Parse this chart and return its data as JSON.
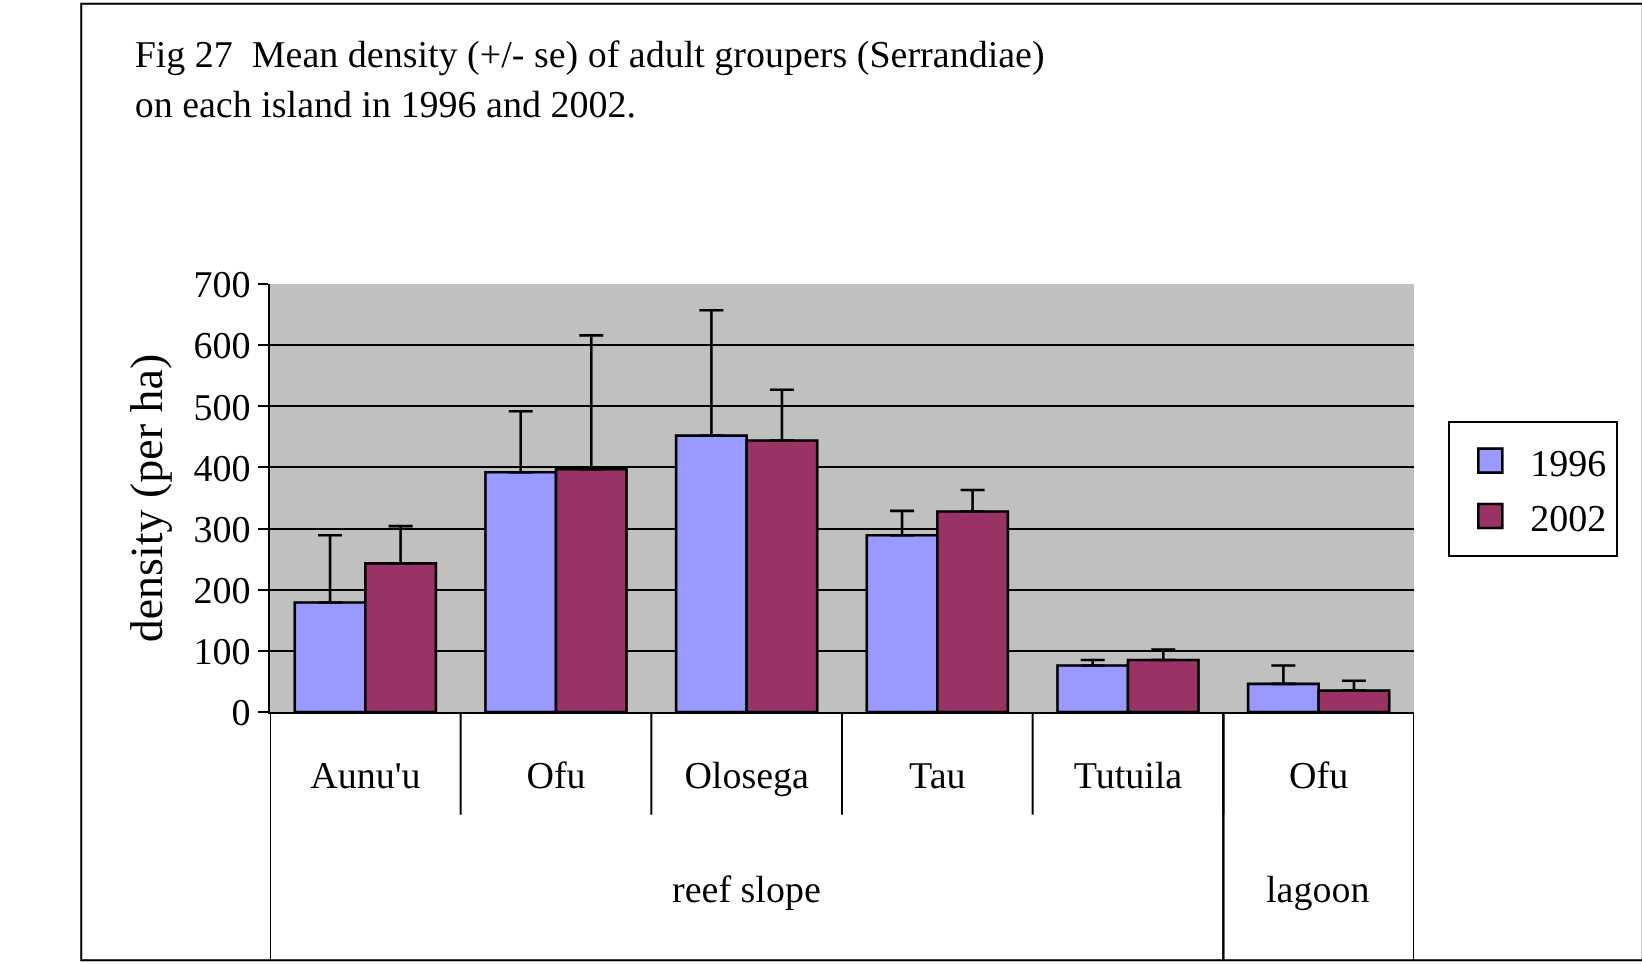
{
  "chart_data": {
    "type": "bar",
    "title": "Fig 27  Mean density (+/- se) of adult groupers (Serrandiae) on each island in 1996 and 2002.",
    "ylabel": "density (per ha)",
    "categories": [
      "Aunu'u",
      "Ofu",
      "Olosega",
      "Tau",
      "Tutuila",
      "Ofu"
    ],
    "series": [
      {
        "name": "1996",
        "color": "#9999ff",
        "values": [
          179,
          392,
          452,
          289,
          76,
          46
        ],
        "errors": [
          [
            179,
            289
          ],
          [
            392,
            492
          ],
          [
            452,
            657
          ],
          [
            289,
            329
          ],
          [
            76,
            85
          ],
          [
            46,
            76
          ]
        ]
      },
      {
        "name": "2002",
        "color": "#993366",
        "values": [
          243,
          397,
          444,
          328,
          85,
          35
        ],
        "errors": [
          [
            243,
            304
          ],
          [
            397,
            616
          ],
          [
            444,
            527
          ],
          [
            328,
            363
          ],
          [
            85,
            102
          ],
          [
            35,
            51
          ]
        ]
      }
    ],
    "annotations": [
      "reef slope",
      "lagoon"
    ],
    "ylim": [
      0,
      700
    ],
    "yticks": [
      0,
      100,
      200,
      300,
      400,
      500,
      600,
      700
    ],
    "grid": "y",
    "legend": "right"
  }
}
